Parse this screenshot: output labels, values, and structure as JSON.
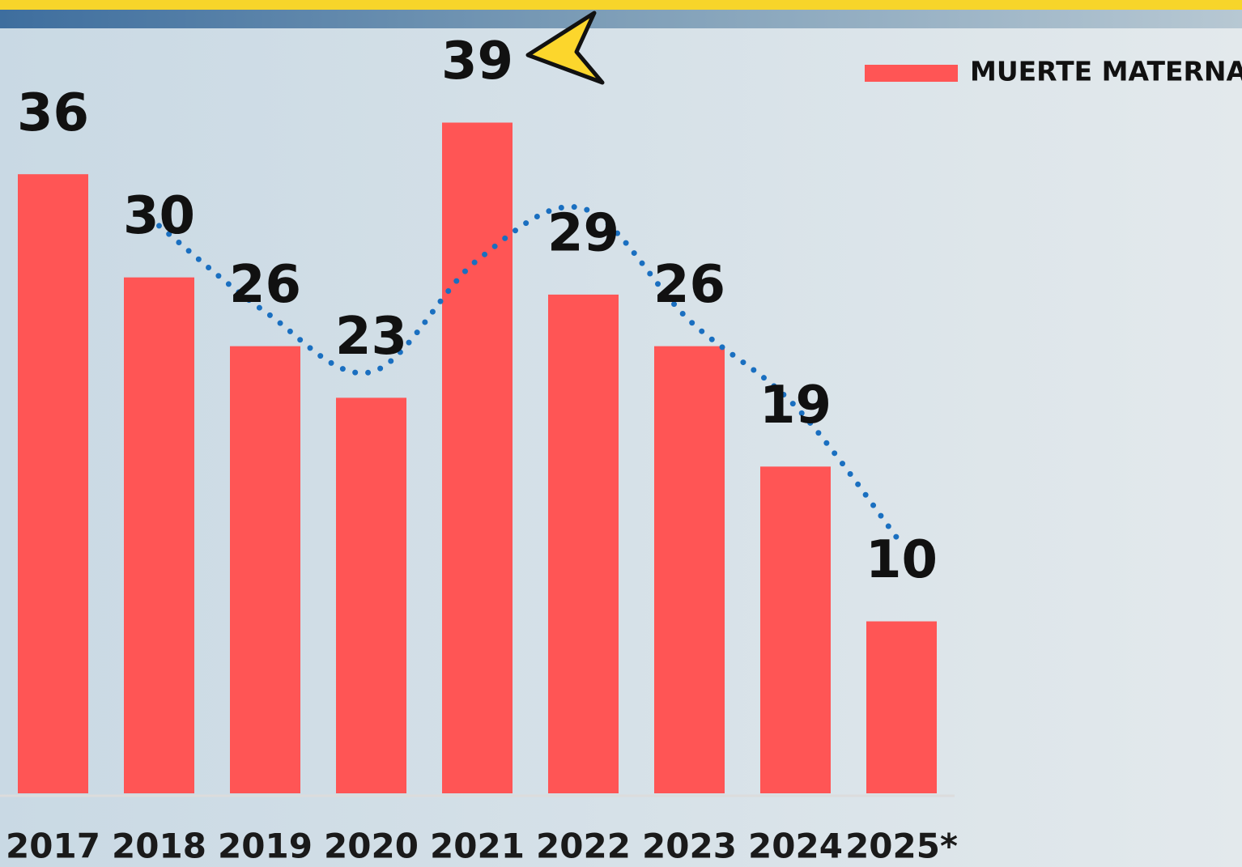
{
  "chart_data": {
    "type": "bar",
    "categories": [
      "2017",
      "2018",
      "2019",
      "2020",
      "2021",
      "2022",
      "2023",
      "2024",
      "2025*"
    ],
    "series": [
      {
        "name": "MUERTE MATERNA",
        "color": "#ff5555",
        "values": [
          36,
          30,
          26,
          23,
          39,
          29,
          26,
          19,
          10
        ]
      }
    ],
    "trend": {
      "color": "#1a6fc0",
      "values": [
        null,
        33,
        28,
        24.5,
        31,
        34,
        27.5,
        22.5,
        14.5
      ]
    },
    "ylim": [
      0,
      45
    ],
    "legend": "top-right"
  }
}
